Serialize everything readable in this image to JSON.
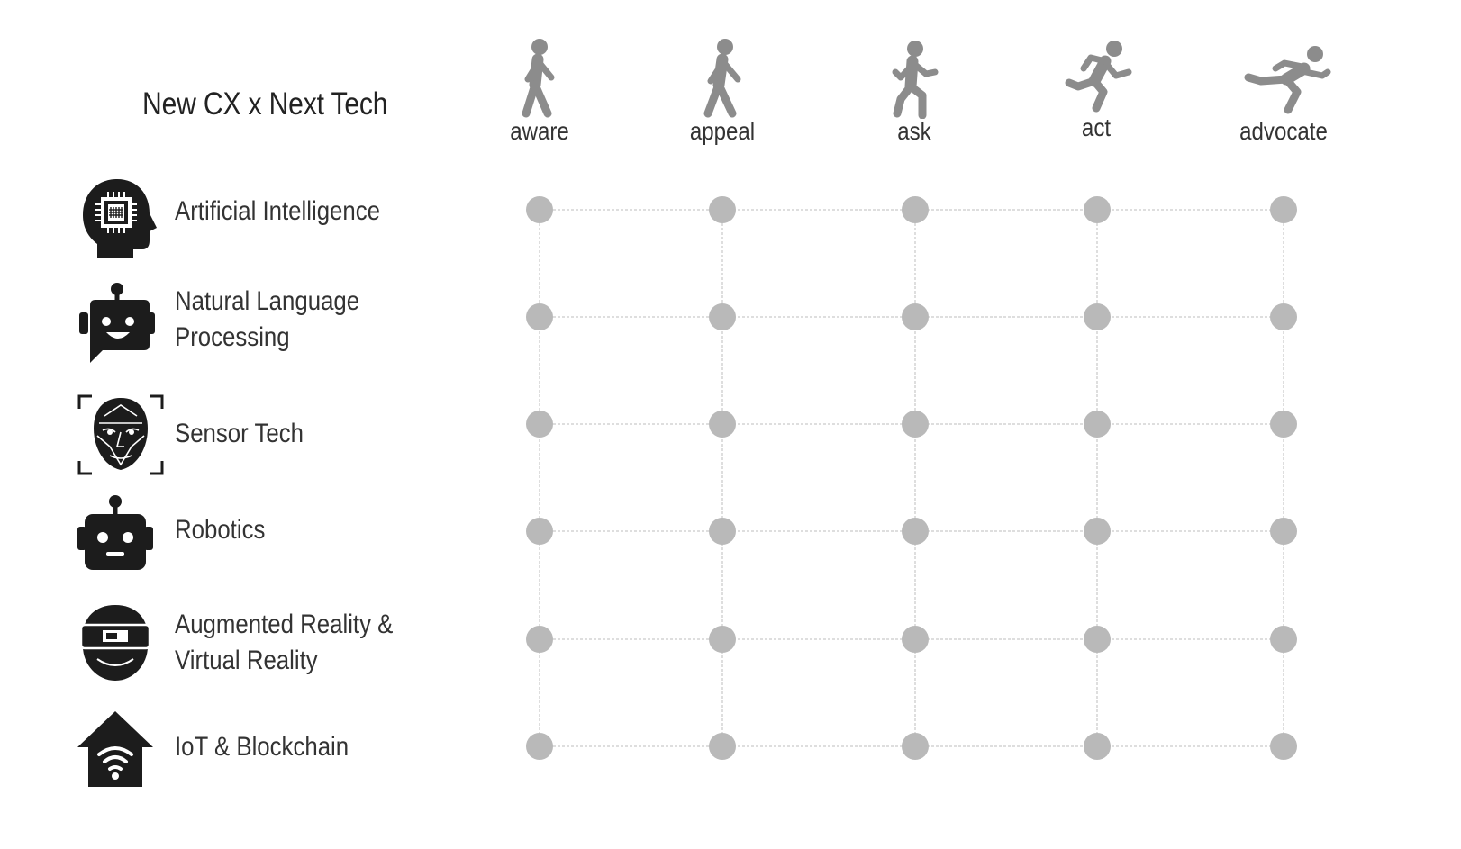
{
  "title": "New CX x Next Tech",
  "stages": [
    {
      "label": "aware",
      "icon": "walking-person-icon"
    },
    {
      "label": "appeal",
      "icon": "walking-person-icon"
    },
    {
      "label": "ask",
      "icon": "walking-fast-person-icon"
    },
    {
      "label": "act",
      "icon": "running-person-icon"
    },
    {
      "label": "advocate",
      "icon": "sprinting-person-icon"
    }
  ],
  "technologies": [
    {
      "label_line1": "Artificial Intelligence",
      "label_line2": "",
      "icon": "ai-head-chip-icon"
    },
    {
      "label_line1": "Natural Language",
      "label_line2": "Processing",
      "icon": "chatbot-icon"
    },
    {
      "label_line1": "Sensor Tech",
      "label_line2": "",
      "icon": "face-scan-icon"
    },
    {
      "label_line1": "Robotics",
      "label_line2": "",
      "icon": "robot-head-icon"
    },
    {
      "label_line1": "Augmented Reality &",
      "label_line2": "Virtual Reality",
      "icon": "vr-headset-icon"
    },
    {
      "label_line1": "IoT & Blockchain",
      "label_line2": "",
      "icon": "smart-home-wifi-icon"
    }
  ],
  "colors": {
    "dot": "#b9b9b9",
    "grid_line": "#bdbdbd",
    "icon_dark": "#1c1c1c",
    "stage_icon": "#8c8c8c"
  }
}
